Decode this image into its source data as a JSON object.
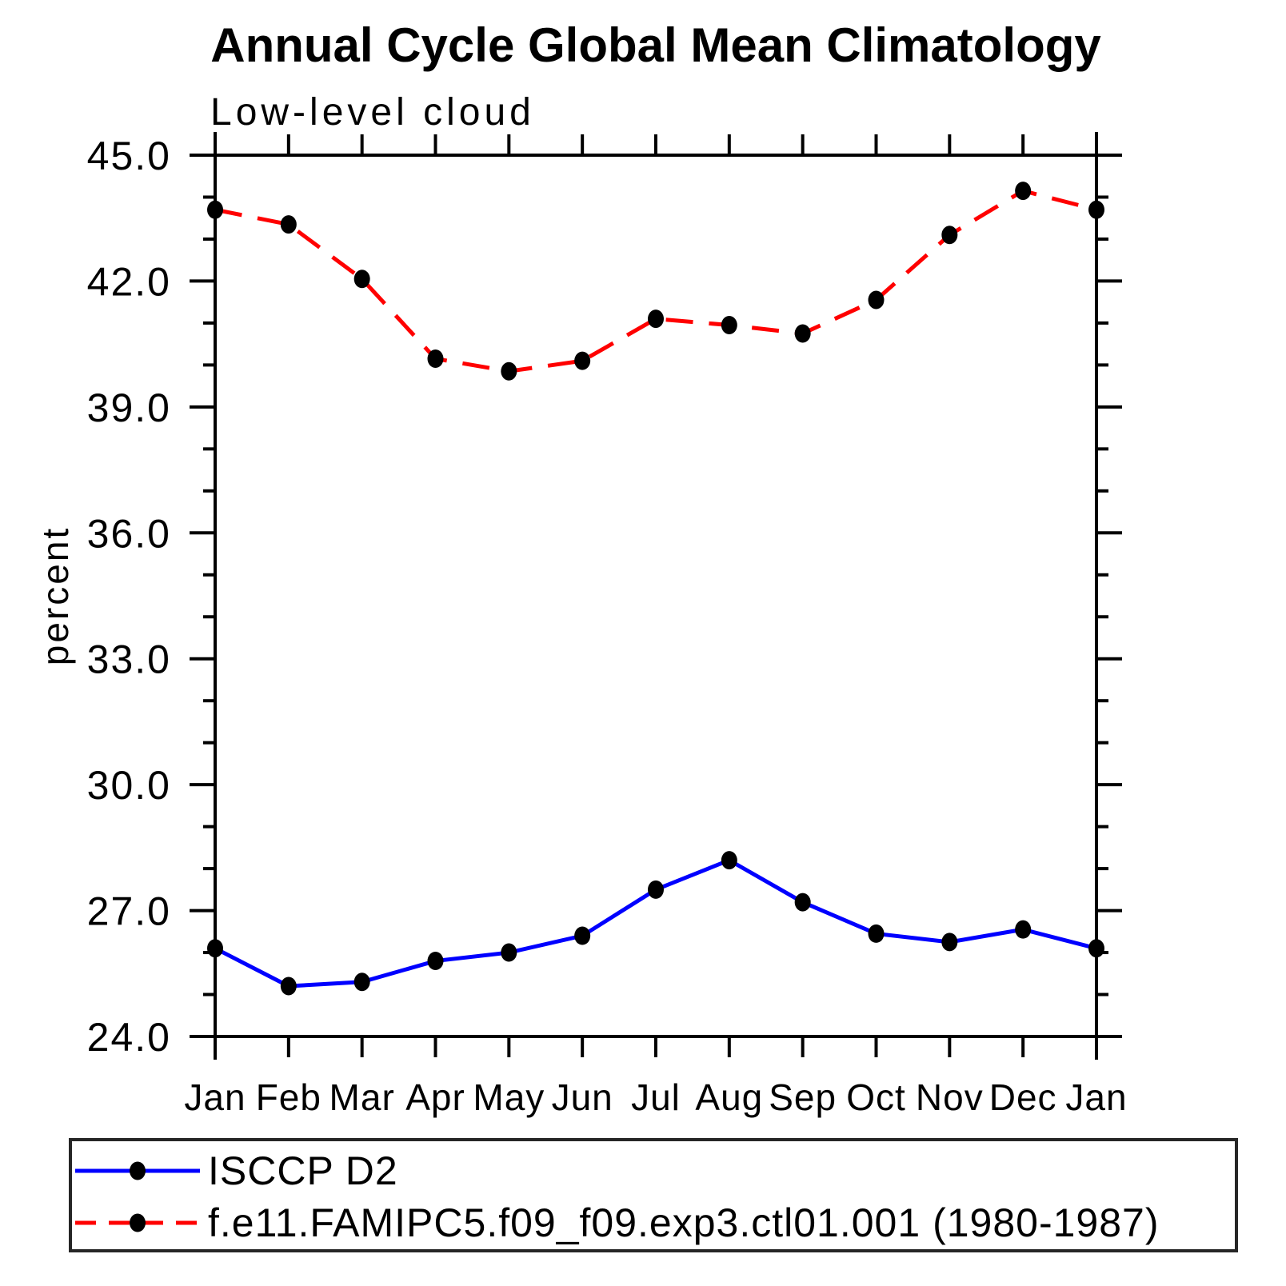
{
  "page": {
    "background": "#ffffff"
  },
  "chart_data": {
    "type": "line",
    "title": "Annual Cycle Global Mean Climatology",
    "subtitle": "Low-level cloud",
    "ylabel": "percent",
    "xlabel": "",
    "x_categories": [
      "Jan",
      "Feb",
      "Mar",
      "Apr",
      "May",
      "Jun",
      "Jul",
      "Aug",
      "Sep",
      "Oct",
      "Nov",
      "Dec",
      "Jan"
    ],
    "ylim": [
      24.0,
      45.0
    ],
    "y_major_ticks": [
      24,
      27,
      30,
      33,
      36,
      39,
      42,
      45
    ],
    "y_major_tick_labels": [
      "24.0",
      "27.0",
      "30.0",
      "33.0",
      "36.0",
      "39.0",
      "42.0",
      "45.0"
    ],
    "y_minor_tick_step": 1.0,
    "grid": false,
    "legend_position": "bottom-left-box",
    "marker_color": "#000000",
    "axis_color": "#000000",
    "series": [
      {
        "name": "ISCCP D2",
        "color": "#0000ff",
        "line_style": "solid",
        "marker": "filled-circle",
        "values": [
          26.1,
          25.2,
          25.3,
          25.8,
          26.0,
          26.4,
          27.5,
          28.2,
          27.2,
          26.45,
          26.25,
          26.55,
          26.1
        ]
      },
      {
        "name": "f.e11.FAMIPC5.f09_f09.exp3.ctl01.001 (1980-1987)",
        "color": "#ff0000",
        "line_style": "dashed",
        "marker": "filled-circle",
        "values": [
          43.7,
          43.35,
          42.05,
          40.15,
          39.85,
          40.1,
          41.1,
          40.95,
          40.75,
          41.55,
          43.1,
          44.15,
          43.7
        ]
      }
    ]
  }
}
